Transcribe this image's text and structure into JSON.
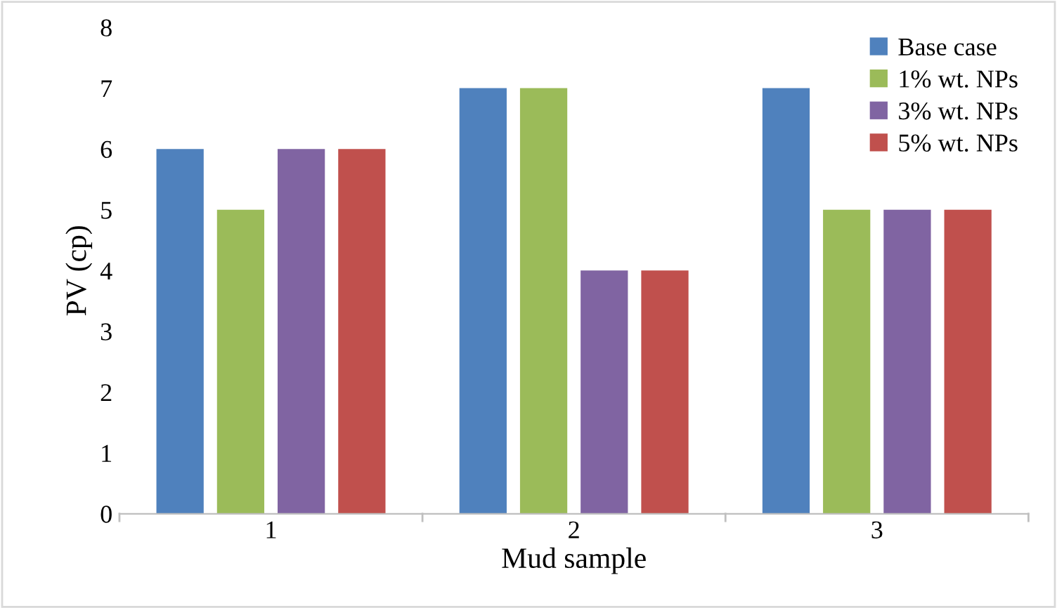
{
  "chart_data": {
    "type": "bar",
    "xlabel": "Mud sample",
    "ylabel": "PV (cp)",
    "categories": [
      "1",
      "2",
      "3"
    ],
    "series": [
      {
        "name": "Base case",
        "color": "#4f81bd",
        "values": [
          6,
          7,
          7
        ]
      },
      {
        "name": "1% wt. NPs",
        "color": "#9bbb59",
        "values": [
          5,
          7,
          5
        ]
      },
      {
        "name": "3% wt. NPs",
        "color": "#8064a2",
        "values": [
          6,
          4,
          5
        ]
      },
      {
        "name": "5% wt. NPs",
        "color": "#c0504d",
        "values": [
          6,
          4,
          5
        ]
      }
    ],
    "ylim": [
      0,
      8
    ],
    "yticks": [
      0,
      1,
      2,
      3,
      4,
      5,
      6,
      7,
      8
    ],
    "grid": false,
    "legend": "top right"
  }
}
